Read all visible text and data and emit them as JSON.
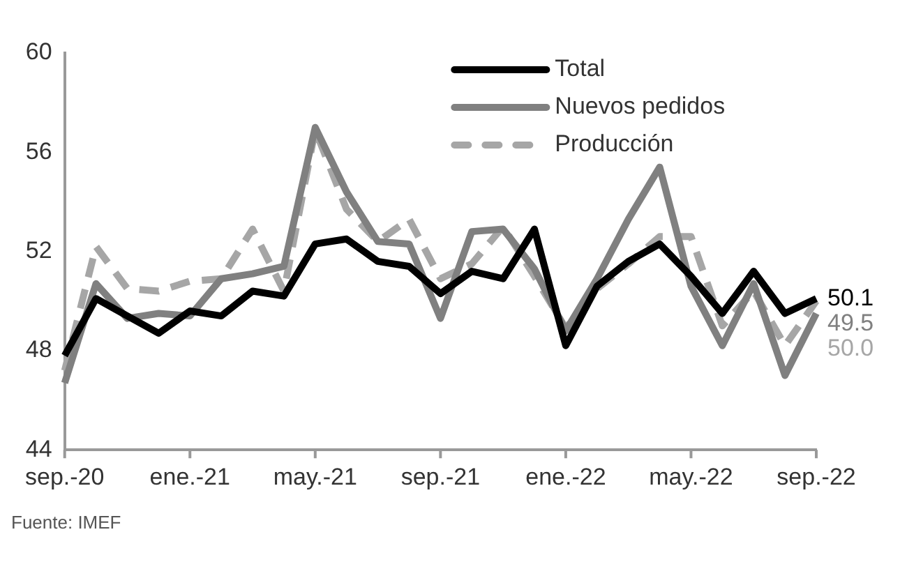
{
  "chart_data": {
    "type": "line",
    "categories": [
      "sep.-20",
      null,
      null,
      null,
      "ene.-21",
      null,
      null,
      null,
      "may.-21",
      null,
      null,
      null,
      "sep.-21",
      null,
      null,
      null,
      "ene.-22",
      null,
      null,
      null,
      "may.-22",
      null,
      null,
      null,
      "sep.-22"
    ],
    "series": [
      {
        "name": "Total",
        "color": "#000000",
        "line_style": "solid",
        "values": [
          47.8,
          50.1,
          49.4,
          48.7,
          49.6,
          49.4,
          50.4,
          50.2,
          52.3,
          52.5,
          51.6,
          51.4,
          50.3,
          51.2,
          50.9,
          52.9,
          48.2,
          50.6,
          51.6,
          52.3,
          51.0,
          49.5,
          51.2,
          49.5,
          50.1
        ],
        "value_labels": [
          null,
          null,
          null,
          null,
          null,
          null,
          null,
          null,
          null,
          null,
          null,
          null,
          null,
          null,
          null,
          null,
          null,
          null,
          null,
          null,
          null,
          null,
          null,
          null,
          "50.1"
        ]
      },
      {
        "name": "Nuevos pedidos",
        "color": "#808080",
        "line_style": "solid",
        "values": [
          46.7,
          50.7,
          49.3,
          49.5,
          49.4,
          50.9,
          51.1,
          51.4,
          57.0,
          54.4,
          52.4,
          52.3,
          49.3,
          52.8,
          52.9,
          51.3,
          48.8,
          50.9,
          53.3,
          55.4,
          50.6,
          48.2,
          50.7,
          47.0,
          49.5
        ],
        "value_labels": [
          null,
          null,
          null,
          null,
          null,
          null,
          null,
          null,
          null,
          null,
          null,
          null,
          null,
          null,
          null,
          null,
          null,
          null,
          null,
          null,
          null,
          null,
          null,
          null,
          "49.5"
        ]
      },
      {
        "name": "Producción",
        "color": "#a6a6a6",
        "line_style": "dashed",
        "values": [
          47.2,
          52.2,
          50.5,
          50.4,
          50.8,
          50.9,
          52.9,
          50.4,
          56.9,
          53.7,
          52.4,
          53.3,
          50.9,
          51.5,
          53.0,
          51.0,
          48.9,
          50.5,
          51.5,
          52.6,
          52.6,
          49.0,
          50.4,
          48.2,
          50.0
        ],
        "value_labels": [
          null,
          null,
          null,
          null,
          null,
          null,
          null,
          null,
          null,
          null,
          null,
          null,
          null,
          null,
          null,
          null,
          null,
          null,
          null,
          null,
          null,
          null,
          null,
          null,
          "50.0"
        ]
      }
    ],
    "ylim": [
      44,
      60
    ],
    "yticks": [
      44,
      48,
      52,
      56,
      60
    ],
    "grid": false,
    "legend": "top",
    "marker": "none",
    "annotations": [
      "Fuente: IMEF"
    ]
  }
}
